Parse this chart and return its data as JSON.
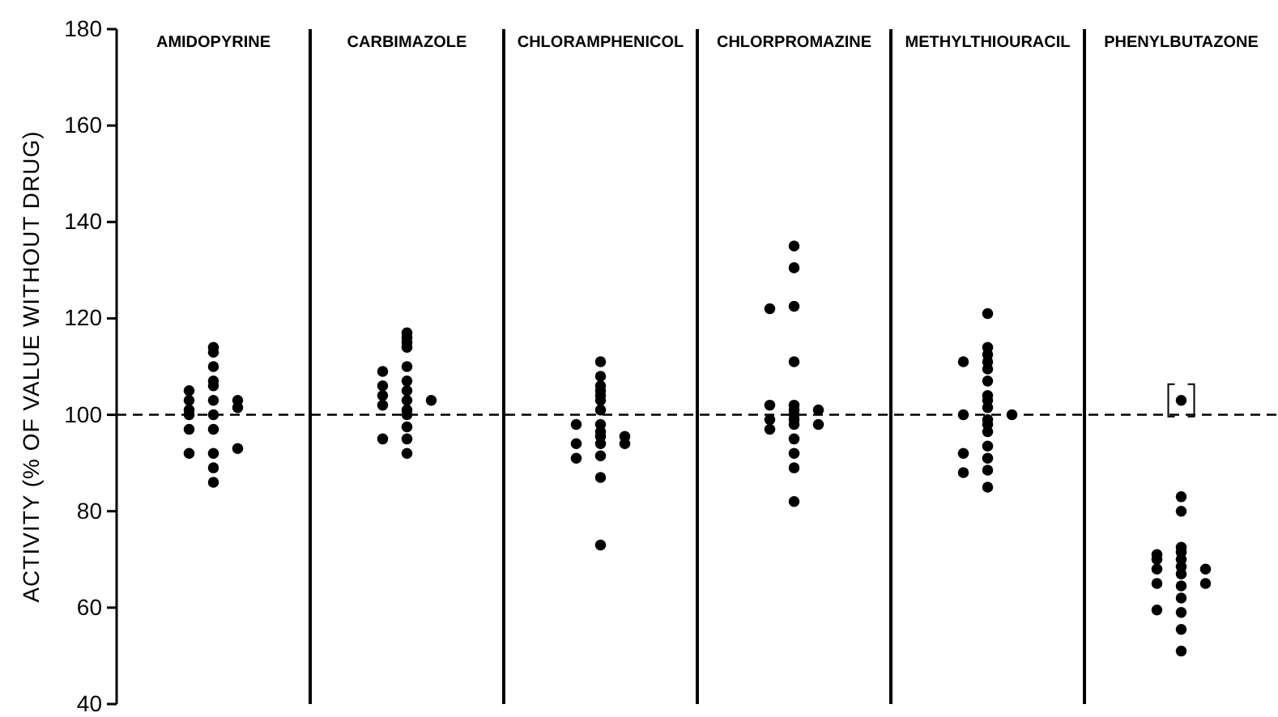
{
  "chart_data": {
    "type": "scatter",
    "ylabel": "ACTIVITY (% OF VALUE WITHOUT DRUG)",
    "categories": [
      "AMIDOPYRINE",
      "CARBIMAZOLE",
      "CHLORAMPHENICOL",
      "CHLORPROMAZINE",
      "METHYLTHIOURACIL",
      "PHENYLBUTAZONE"
    ],
    "ylim": [
      40,
      180
    ],
    "yticks": [
      40,
      60,
      80,
      100,
      120,
      140,
      160,
      180
    ],
    "grid": false,
    "marker": "circle",
    "ref_lines": [
      {
        "axis": "y",
        "value": 100,
        "line_style": "dashed",
        "color": "#000000"
      }
    ],
    "series": [
      {
        "color": "#000000",
        "x": [
          "AMIDOPYRINE",
          "AMIDOPYRINE",
          "AMIDOPYRINE",
          "AMIDOPYRINE",
          "AMIDOPYRINE",
          "AMIDOPYRINE",
          "CARBIMAZOLE",
          "CARBIMAZOLE",
          "CARBIMAZOLE",
          "CARBIMAZOLE",
          "CARBIMAZOLE",
          "CHLORAMPHENICOL",
          "CHLORAMPHENICOL",
          "CHLORAMPHENICOL",
          "CHLORPROMAZINE",
          "CHLORPROMAZINE",
          "CHLORPROMAZINE",
          "CHLORPROMAZINE",
          "METHYLTHIOURACIL",
          "METHYLTHIOURACIL",
          "METHYLTHIOURACIL",
          "METHYLTHIOURACIL",
          "PHENYLBUTAZONE",
          "PHENYLBUTAZONE",
          "PHENYLBUTAZONE",
          "PHENYLBUTAZONE",
          "PHENYLBUTAZONE"
        ],
        "values": [
          105,
          103,
          101,
          100,
          97,
          92,
          109,
          106,
          104,
          102,
          95,
          98,
          94,
          91,
          122,
          102,
          99,
          97,
          111,
          100,
          92,
          88,
          71,
          70,
          68,
          65,
          59.5
        ]
      },
      {
        "color": "#000000",
        "x": [
          "AMIDOPYRINE",
          "AMIDOPYRINE",
          "AMIDOPYRINE",
          "AMIDOPYRINE",
          "AMIDOPYRINE",
          "AMIDOPYRINE",
          "AMIDOPYRINE",
          "AMIDOPYRINE",
          "AMIDOPYRINE",
          "AMIDOPYRINE",
          "AMIDOPYRINE",
          "CARBIMAZOLE",
          "CARBIMAZOLE",
          "CARBIMAZOLE",
          "CARBIMAZOLE",
          "CARBIMAZOLE",
          "CARBIMAZOLE",
          "CARBIMAZOLE",
          "CARBIMAZOLE",
          "CARBIMAZOLE",
          "CARBIMAZOLE",
          "CARBIMAZOLE",
          "CARBIMAZOLE",
          "CARBIMAZOLE",
          "CHLORAMPHENICOL",
          "CHLORAMPHENICOL",
          "CHLORAMPHENICOL",
          "CHLORAMPHENICOL",
          "CHLORAMPHENICOL",
          "CHLORAMPHENICOL",
          "CHLORAMPHENICOL",
          "CHLORAMPHENICOL",
          "CHLORAMPHENICOL",
          "CHLORAMPHENICOL",
          "CHLORAMPHENICOL",
          "CHLORAMPHENICOL",
          "CHLORAMPHENICOL",
          "CHLORAMPHENICOL",
          "CHLORPROMAZINE",
          "CHLORPROMAZINE",
          "CHLORPROMAZINE",
          "CHLORPROMAZINE",
          "CHLORPROMAZINE",
          "CHLORPROMAZINE",
          "CHLORPROMAZINE",
          "CHLORPROMAZINE",
          "CHLORPROMAZINE",
          "CHLORPROMAZINE",
          "CHLORPROMAZINE",
          "CHLORPROMAZINE",
          "CHLORPROMAZINE",
          "METHYLTHIOURACIL",
          "METHYLTHIOURACIL",
          "METHYLTHIOURACIL",
          "METHYLTHIOURACIL",
          "METHYLTHIOURACIL",
          "METHYLTHIOURACIL",
          "METHYLTHIOURACIL",
          "METHYLTHIOURACIL",
          "METHYLTHIOURACIL",
          "METHYLTHIOURACIL",
          "METHYLTHIOURACIL",
          "METHYLTHIOURACIL",
          "METHYLTHIOURACIL",
          "METHYLTHIOURACIL",
          "METHYLTHIOURACIL",
          "METHYLTHIOURACIL",
          "PHENYLBUTAZONE",
          "PHENYLBUTAZONE",
          "PHENYLBUTAZONE",
          "PHENYLBUTAZONE",
          "PHENYLBUTAZONE",
          "PHENYLBUTAZONE",
          "PHENYLBUTAZONE",
          "PHENYLBUTAZONE",
          "PHENYLBUTAZONE",
          "PHENYLBUTAZONE",
          "PHENYLBUTAZONE",
          "PHENYLBUTAZONE",
          "PHENYLBUTAZONE"
        ],
        "values": [
          114,
          113,
          110,
          107,
          106,
          103,
          100,
          97,
          92,
          89,
          86,
          117,
          116,
          115,
          114,
          110,
          107,
          105,
          103,
          101,
          100,
          97.5,
          95,
          92,
          111,
          108,
          106,
          105,
          104,
          103,
          101,
          98,
          96.5,
          95.5,
          94,
          91.5,
          87,
          73,
          135,
          130.5,
          122.5,
          111,
          102,
          101,
          100,
          99,
          98,
          95,
          92,
          89,
          82,
          121,
          114,
          112.5,
          111,
          109.5,
          107,
          104,
          103,
          101.5,
          99,
          98,
          96.5,
          93.5,
          91,
          88.5,
          85,
          103,
          83,
          80,
          72.5,
          71.5,
          70,
          68.5,
          67,
          64.5,
          62,
          59,
          55.5,
          51
        ]
      },
      {
        "color": "#000000",
        "x": [
          "AMIDOPYRINE",
          "AMIDOPYRINE",
          "AMIDOPYRINE",
          "CARBIMAZOLE",
          "CHLORAMPHENICOL",
          "CHLORAMPHENICOL",
          "CHLORPROMAZINE",
          "CHLORPROMAZINE",
          "METHYLTHIOURACIL",
          "PHENYLBUTAZONE",
          "PHENYLBUTAZONE"
        ],
        "values": [
          103,
          101.5,
          93,
          103,
          95.5,
          94,
          101,
          98,
          100,
          68,
          65
        ]
      }
    ]
  }
}
